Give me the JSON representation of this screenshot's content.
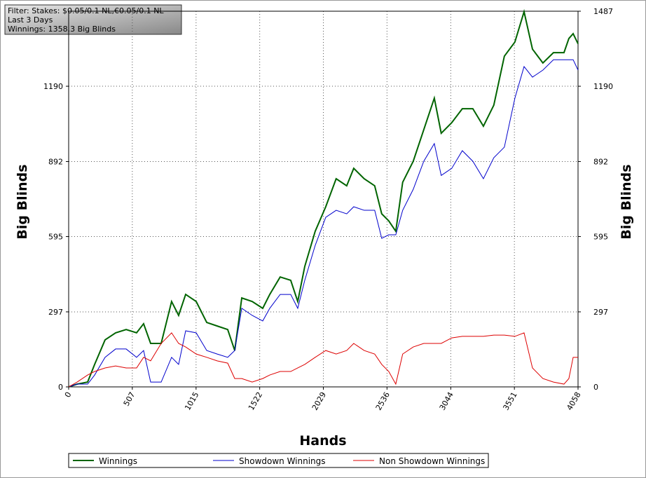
{
  "chart_data": {
    "type": "line",
    "annotations": [
      "Filter: Stakes: $0.05/0.1 NL,€0.05/0.1 NL",
      "Last  3 Days",
      "Winnings: 1358.3 Big Blinds"
    ],
    "xlabel": "Hands",
    "ylabel": "Big Blinds",
    "y2label": "Big Blinds",
    "xlim": [
      0,
      4058
    ],
    "xticks": [
      0,
      507,
      1015,
      1522,
      2029,
      2536,
      3044,
      3551,
      4058
    ],
    "ylim": [
      0,
      1487
    ],
    "yticks": [
      0,
      297,
      595,
      892,
      1190
    ],
    "y2lim": [
      0,
      1487
    ],
    "y2ticks": [
      0,
      297,
      595,
      892,
      1190,
      1487
    ],
    "grid": true,
    "legend": "bottom",
    "x": [
      0,
      67,
      151,
      207,
      290,
      374,
      458,
      541,
      597,
      653,
      737,
      820,
      876,
      932,
      1016,
      1100,
      1183,
      1267,
      1323,
      1379,
      1462,
      1546,
      1602,
      1685,
      1769,
      1825,
      1881,
      1964,
      2048,
      2131,
      2215,
      2271,
      2354,
      2438,
      2494,
      2550,
      2606,
      2661,
      2745,
      2829,
      2913,
      2968,
      3052,
      3136,
      3220,
      3304,
      3387,
      3471,
      3555,
      3628,
      3695,
      3778,
      3862,
      3946,
      3985,
      4019,
      4058
    ],
    "series": [
      {
        "name": "Winnings",
        "color": "#006400",
        "values": [
          0,
          11,
          19,
          89,
          186,
          214,
          227,
          214,
          250,
          172,
          172,
          338,
          283,
          366,
          338,
          255,
          241,
          227,
          144,
          352,
          338,
          311,
          366,
          435,
          422,
          338,
          477,
          616,
          713,
          824,
          796,
          865,
          824,
          796,
          685,
          657,
          616,
          810,
          893,
          1018,
          1143,
          1004,
          1046,
          1101,
          1101,
          1032,
          1115,
          1309,
          1365,
          1485,
          1337,
          1282,
          1323,
          1323,
          1379,
          1398,
          1358
        ]
      },
      {
        "name": "Showdown Winnings",
        "color": "#0000cc",
        "values": [
          0,
          11,
          11,
          47,
          117,
          150,
          150,
          117,
          144,
          19,
          19,
          117,
          89,
          222,
          214,
          144,
          130,
          117,
          144,
          311,
          283,
          261,
          311,
          366,
          366,
          311,
          422,
          560,
          671,
          699,
          685,
          713,
          699,
          699,
          588,
          602,
          602,
          699,
          782,
          893,
          963,
          837,
          865,
          935,
          893,
          824,
          907,
          949,
          1143,
          1268,
          1226,
          1254,
          1295,
          1295,
          1295,
          1295,
          1254
        ]
      },
      {
        "name": "Non Showdown Winnings",
        "color": "#dd0000",
        "values": [
          0,
          19,
          47,
          61,
          75,
          83,
          75,
          75,
          117,
          103,
          172,
          214,
          172,
          158,
          130,
          117,
          103,
          94,
          33,
          33,
          19,
          33,
          47,
          61,
          61,
          75,
          89,
          117,
          144,
          130,
          144,
          172,
          144,
          130,
          89,
          61,
          11,
          130,
          158,
          172,
          172,
          172,
          194,
          200,
          200,
          200,
          205,
          205,
          200,
          214,
          75,
          33,
          19,
          11,
          33,
          117,
          117
        ]
      }
    ]
  }
}
